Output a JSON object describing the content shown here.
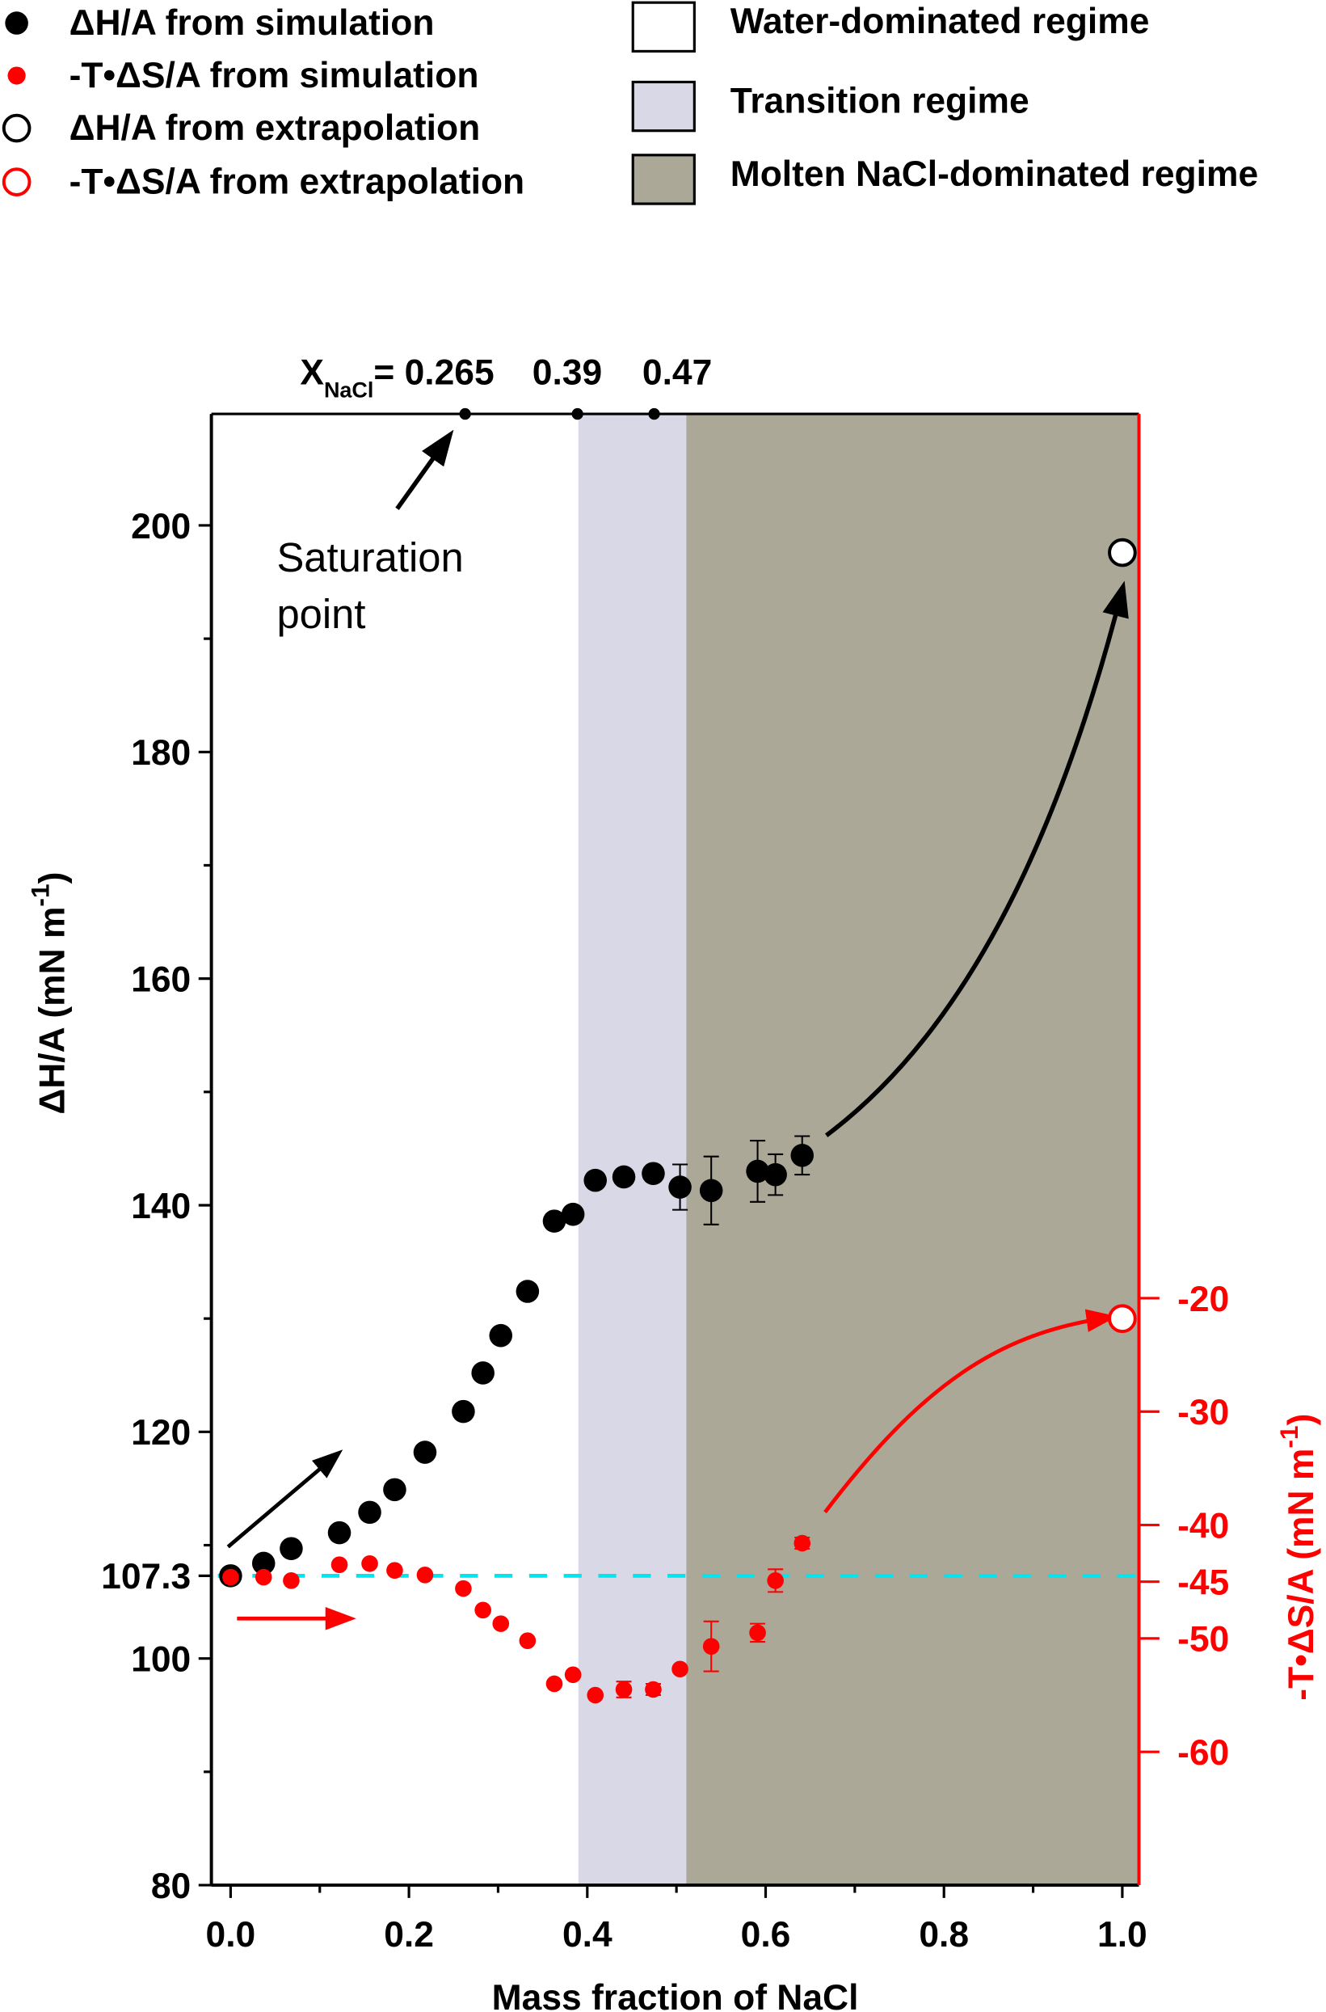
{
  "chart_data": {
    "type": "scatter",
    "xlabel": "Mass fraction of NaCl",
    "ylabel": {
      "main": "ΔH/A (mN m",
      "sup": "-1",
      "end": ")"
    },
    "y2label": {
      "main": "-T•ΔS/A (mN m",
      "sup": "-1",
      "end": ")"
    },
    "xlim": [
      -0.02,
      1.02
    ],
    "ylim": [
      80,
      210
    ],
    "y2_color": "#ff0000",
    "x_ticks": [
      "0.0",
      "0.2",
      "0.4",
      "0.6",
      "0.8",
      "1.0"
    ],
    "x_tick_values": [
      0,
      0.2,
      0.4,
      0.6,
      0.8,
      1.0
    ],
    "y_ticks": [
      "80",
      "100",
      "107.3",
      "120",
      "140",
      "160",
      "180",
      "200"
    ],
    "y_tick_values": [
      80,
      100,
      107.3,
      120,
      140,
      160,
      180,
      200
    ],
    "y2_ticks": [
      "-20",
      "-30",
      "-40",
      "-45",
      "-50",
      "-60"
    ],
    "y2_tick_values": [
      -20,
      -30,
      -40,
      -45,
      -50,
      -60
    ],
    "reference_line": {
      "y": 107.3,
      "color": "#00e5ee"
    },
    "regions": [
      {
        "name": "Water-dominated regime",
        "from": -0.02,
        "to": 0.39,
        "color": "#ffffff"
      },
      {
        "name": "Transition regime",
        "from": 0.39,
        "to": 0.511,
        "color": "#d9d8e6"
      },
      {
        "name": "Molten NaCl-dominated regime",
        "from": 0.511,
        "to": 1.02,
        "color": "#aba898"
      }
    ],
    "top_markers": [
      {
        "x": 0.263,
        "prefix": "X",
        "sub": "NaCl",
        "label": "= 0.265"
      },
      {
        "x": 0.389,
        "label": "0.39"
      },
      {
        "x": 0.475,
        "label": "0.47"
      }
    ],
    "annotation": {
      "line1": "Saturation",
      "line2": "point"
    },
    "series": [
      {
        "name": "ΔH/A from simulation",
        "axis": "left",
        "color": "#000000",
        "marker": "filled-circle",
        "x": [
          0,
          0.037,
          0.068,
          0.122,
          0.156,
          0.184,
          0.218,
          0.261,
          0.283,
          0.303,
          0.333,
          0.363,
          0.384,
          0.409,
          0.441,
          0.474,
          0.504,
          0.539,
          0.591,
          0.611,
          0.641
        ],
        "y": [
          107.3,
          108.4,
          109.7,
          111.1,
          112.9,
          114.9,
          118.2,
          121.8,
          125.2,
          128.5,
          132.4,
          138.6,
          139.2,
          142.2,
          142.5,
          142.8,
          141.6,
          141.3,
          143.0,
          142.7,
          144.4
        ],
        "err": [
          0,
          0,
          0,
          0,
          0,
          0,
          0,
          0,
          0,
          0,
          0,
          0,
          0,
          0,
          0,
          0.4,
          2.0,
          3.0,
          2.7,
          1.8,
          1.7
        ]
      },
      {
        "name": "-T•ΔS/A from simulation",
        "axis": "right",
        "color": "#ff0000",
        "marker": "small-filled-circle",
        "x": [
          0,
          0.037,
          0.068,
          0.122,
          0.156,
          0.184,
          0.218,
          0.261,
          0.283,
          0.303,
          0.333,
          0.363,
          0.384,
          0.409,
          0.441,
          0.474,
          0.504,
          0.539,
          0.591,
          0.611,
          0.641
        ],
        "y": [
          -44.6,
          -44.6,
          -44.9,
          -43.5,
          -43.4,
          -44.0,
          -44.4,
          -45.6,
          -47.5,
          -48.7,
          -50.2,
          -54.0,
          -53.2,
          -55.0,
          -54.5,
          -54.5,
          -52.7,
          -50.7,
          -49.5,
          -44.9,
          -41.6
        ],
        "err": [
          0,
          0,
          0,
          0,
          0,
          0,
          0,
          0,
          0,
          0,
          0,
          0,
          0,
          0,
          0.7,
          0.5,
          0,
          2.2,
          0.8,
          1.0,
          0.5
        ]
      },
      {
        "name": "ΔH/A from extrapolation",
        "axis": "left",
        "color": "#000000",
        "marker": "open-circle",
        "x": [
          1.0
        ],
        "y": [
          197.6
        ],
        "err": [
          0
        ]
      },
      {
        "name": "-T•ΔS/A from extrapolation",
        "axis": "right",
        "color": "#ff0000",
        "marker": "open-circle",
        "x": [
          1.0
        ],
        "y": [
          -21.8
        ],
        "err": [
          0
        ]
      }
    ],
    "legend": {
      "placement": "top",
      "entries": [
        "ΔH/A from simulation",
        "-T•ΔS/A from simulation",
        "ΔH/A from extrapolation",
        "-T•ΔS/A from extrapolation"
      ],
      "regions": [
        "Water-dominated regime",
        "Transition regime",
        "Molten NaCl-dominated regime"
      ]
    }
  }
}
